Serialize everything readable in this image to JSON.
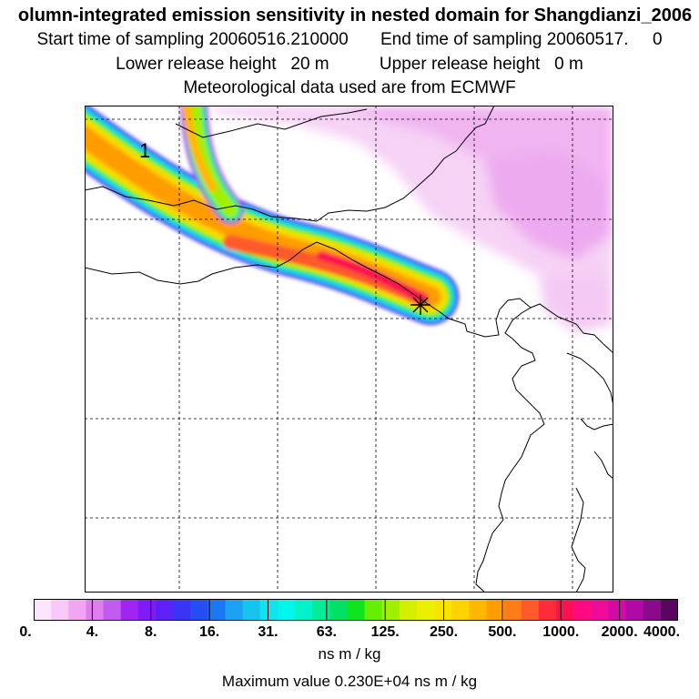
{
  "header": {
    "title": "olumn-integrated emission sensitivity in nested domain for Shangdianzi_2006",
    "start_label": "Start time of sampling",
    "start_value": "20060516.210000",
    "end_label": "End time of sampling",
    "end_value": "20060517.",
    "end_value_suffix": "0",
    "lower_label": "Lower release height",
    "lower_value": "20 m",
    "upper_label": "Upper release height",
    "upper_value": "0 m",
    "met_line": "Meteorological data used are from ECMWF"
  },
  "map": {
    "contour_label": "1",
    "receptor_marker": "plus-cross"
  },
  "legend": {
    "tick_labels": [
      "0.",
      "4.",
      "8.",
      "16.",
      "31.",
      "63.",
      "125.",
      "250.",
      "500.",
      "1000.",
      "2000.",
      "4000."
    ],
    "colors": [
      "#fde6fd",
      "#f8c8f8",
      "#f2a6f2",
      "#e07ef0",
      "#c25cf0",
      "#a025f0",
      "#7f1cf6",
      "#5e20f6",
      "#3a34f4",
      "#244ef2",
      "#1c78f2",
      "#1ca0f2",
      "#16c4f0",
      "#10e2f0",
      "#00f8ec",
      "#00f2c8",
      "#00ec96",
      "#00e064",
      "#10e41e",
      "#64f000",
      "#a0f000",
      "#d4f000",
      "#eaf000",
      "#f8e400",
      "#ffd200",
      "#ffb800",
      "#ff9c00",
      "#ff7c18",
      "#ff5a2a",
      "#ff2a3a",
      "#ff1050",
      "#ff0a80",
      "#f00a9a",
      "#d40aa8",
      "#b00aa6",
      "#8a0a8c",
      "#5a0660"
    ],
    "unit": "ns m / kg",
    "max_value_text": "Maximum value  0.230E+04 ns m / kg"
  }
}
